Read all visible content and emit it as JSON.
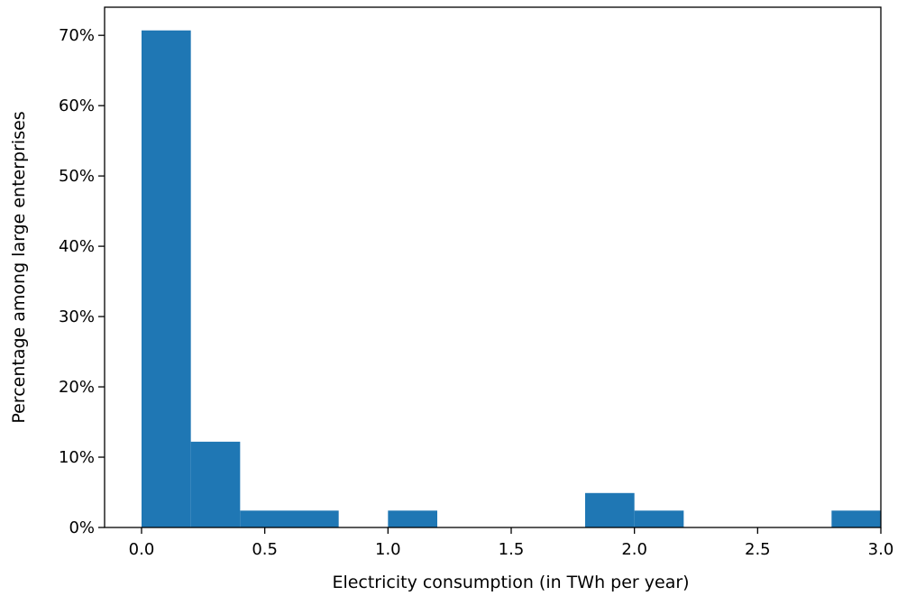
{
  "chart_data": {
    "type": "bar",
    "histogram": true,
    "title": "",
    "xlabel": "Electricity consumption (in TWh per year)",
    "ylabel": "Percentage among large enterprises",
    "xlim": [
      -0.15,
      3.0
    ],
    "ylim": [
      0,
      74
    ],
    "bar_color": "#1f77b4",
    "bin_edges": [
      0.0,
      0.2,
      0.4,
      0.6,
      0.8,
      1.0,
      1.2,
      1.4,
      1.6,
      1.8,
      2.0,
      2.2,
      2.4,
      2.6,
      2.8,
      3.0
    ],
    "values": [
      70.7,
      12.2,
      2.4,
      2.4,
      0.0,
      2.4,
      0.0,
      0.0,
      0.0,
      4.9,
      2.4,
      0.0,
      0.0,
      0.0,
      2.4
    ],
    "x_ticks": [
      {
        "value": 0.0,
        "label": "0.0"
      },
      {
        "value": 0.5,
        "label": "0.5"
      },
      {
        "value": 1.0,
        "label": "1.0"
      },
      {
        "value": 1.5,
        "label": "1.5"
      },
      {
        "value": 2.0,
        "label": "2.0"
      },
      {
        "value": 2.5,
        "label": "2.5"
      },
      {
        "value": 3.0,
        "label": "3.0"
      }
    ],
    "y_ticks": [
      {
        "value": 0,
        "label": "0%"
      },
      {
        "value": 10,
        "label": "10%"
      },
      {
        "value": 20,
        "label": "20%"
      },
      {
        "value": 30,
        "label": "30%"
      },
      {
        "value": 40,
        "label": "40%"
      },
      {
        "value": 50,
        "label": "50%"
      },
      {
        "value": 60,
        "label": "60%"
      },
      {
        "value": 70,
        "label": "70%"
      }
    ],
    "grid": false,
    "legend": "none"
  }
}
